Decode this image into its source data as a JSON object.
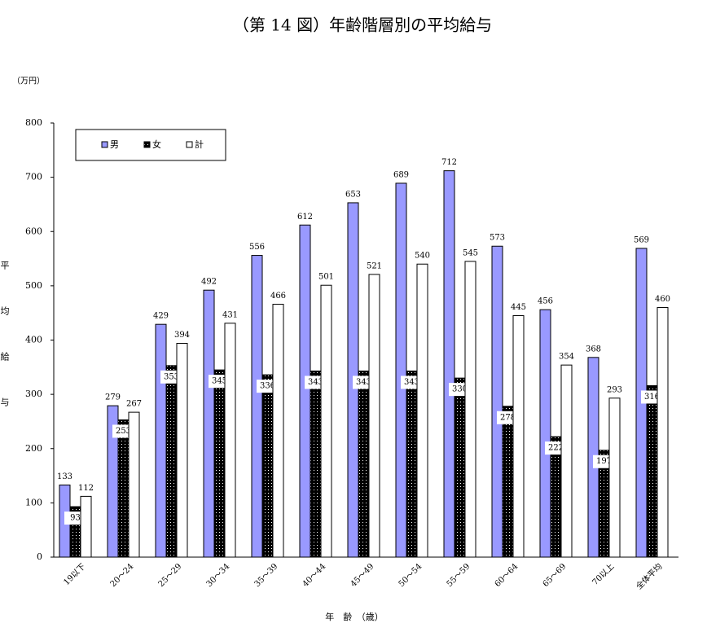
{
  "chart_data": {
    "type": "bar",
    "title": "（第 14 図）年齢階層別の平均給与",
    "unit_label": "（万円）",
    "y_label": "平均給与",
    "x_label": "年　齢　（歳）",
    "categories": [
      "19以下",
      "20～24",
      "25～29",
      "30～34",
      "35～39",
      "40～44",
      "45～49",
      "50～54",
      "55～59",
      "60～64",
      "65～69",
      "70以上",
      "全体平均"
    ],
    "series": [
      {
        "name": "男",
        "color": "#9999ff",
        "values": [
          133,
          279,
          429,
          492,
          556,
          612,
          653,
          689,
          712,
          573,
          456,
          368,
          569
        ]
      },
      {
        "name": "女",
        "color": "#000000",
        "values": [
          93,
          253,
          353,
          345,
          336,
          343,
          343,
          343,
          330,
          278,
          222,
          197,
          316
        ]
      },
      {
        "name": "計",
        "color": "#ffffff",
        "values": [
          112,
          267,
          394,
          431,
          466,
          501,
          521,
          540,
          545,
          445,
          354,
          293,
          460
        ]
      }
    ],
    "ylim": [
      0,
      800
    ],
    "yticks": [
      0,
      100,
      200,
      300,
      400,
      500,
      600,
      700,
      800
    ],
    "legend": "upper left"
  }
}
